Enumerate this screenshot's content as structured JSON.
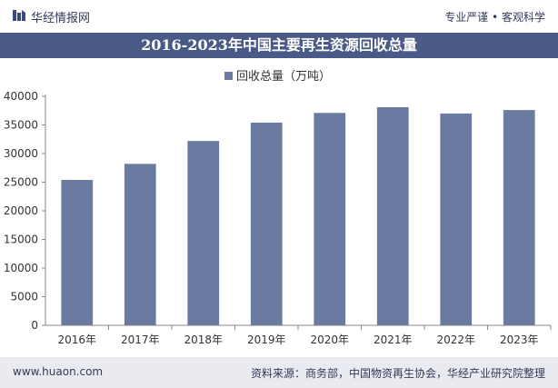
{
  "header": {
    "brand": "华经情报网",
    "tagline": "专业严谨 • 客观科学"
  },
  "footer": {
    "url": "www.huaon.com",
    "source": "资料来源：商务部，中国物资再生协会，华经产业研究院整理"
  },
  "chart_data": {
    "type": "bar",
    "title": "2016-2023年中国主要再生资源回收总量",
    "categories": [
      "2016年",
      "2017年",
      "2018年",
      "2019年",
      "2020年",
      "2021年",
      "2022年",
      "2023年"
    ],
    "series": [
      {
        "name": "回收总量（万吨）",
        "values": [
          25400,
          28200,
          32200,
          35400,
          37100,
          38100,
          37000,
          37600
        ]
      }
    ],
    "ylim": [
      0,
      40000
    ],
    "yticks": [
      0,
      5000,
      10000,
      15000,
      20000,
      25000,
      30000,
      35000,
      40000
    ],
    "grid": false,
    "legend_position": "top-center",
    "colors": {
      "bar": "#6a7aa0",
      "title_bar": "#4a5a86"
    }
  }
}
